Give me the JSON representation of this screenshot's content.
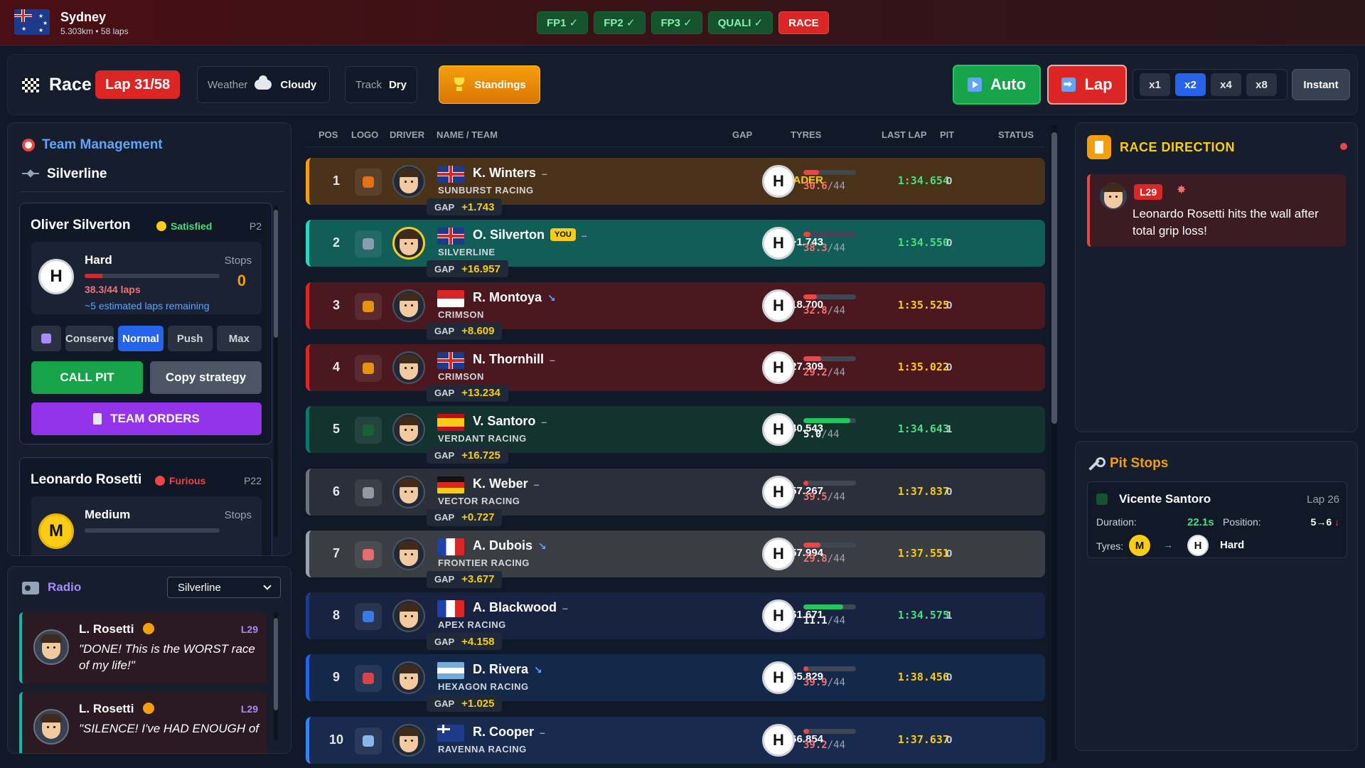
{
  "header": {
    "city": "Sydney",
    "track_info": "5.303km • 58 laps",
    "sessions": [
      {
        "label": "FP1 ✓",
        "done": true
      },
      {
        "label": "FP2 ✓",
        "done": true
      },
      {
        "label": "FP3 ✓",
        "done": true
      },
      {
        "label": "QUALI ✓",
        "done": true
      },
      {
        "label": "RACE",
        "done": false
      }
    ]
  },
  "controls": {
    "race_label": "Race",
    "lap_badge": "Lap 31/58",
    "weather_label": "Weather",
    "weather_value": "Cloudy",
    "track_label": "Track",
    "track_value": "Dry",
    "standings_label": "Standings",
    "auto_label": "Auto",
    "lap_label": "Lap",
    "speeds": [
      "x1",
      "x2",
      "x4",
      "x8"
    ],
    "speed_active": "x2",
    "instant_label": "Instant"
  },
  "team_management": {
    "title": "Team Management",
    "team": "Silverline",
    "drivers": [
      {
        "name": "Oliver Silverton",
        "mood": "Satisfied",
        "mood_color": "#4ade80",
        "position": "P2",
        "compound": "Hard",
        "compound_letter": "H",
        "tyre_laps": "38.3/44 laps",
        "tyre_wear_fraction": 0.13,
        "estimate": "~5 estimated laps remaining",
        "stops_label": "Stops",
        "stops": "0",
        "modes": [
          "Conserve",
          "Normal",
          "Push",
          "Max"
        ],
        "mode_active": "Normal",
        "call_pit": "CALL PIT",
        "copy_strategy": "Copy strategy",
        "team_orders": "TEAM ORDERS"
      },
      {
        "name": "Leonardo Rosetti",
        "mood": "Furious",
        "mood_color": "#ef4444",
        "position": "P22",
        "compound": "Medium",
        "compound_letter": "M",
        "stops_label": "Stops"
      }
    ]
  },
  "radio": {
    "title": "Radio",
    "selected_team": "Silverline",
    "messages": [
      {
        "from": "L. Rosetti",
        "lap": "L29",
        "text": "\"DONE! This is the WORST race of my life!\""
      },
      {
        "from": "L. Rosetti",
        "lap": "L29",
        "text": "\"SILENCE! I've HAD ENOUGH of"
      }
    ]
  },
  "table": {
    "headers": {
      "pos": "POS",
      "logo": "LOGO",
      "driver": "DRIVER",
      "name_team": "NAME / TEAM",
      "gap": "GAP",
      "tyres": "TYRES",
      "last_lap": "LAST LAP",
      "pit": "PIT",
      "status": "STATUS"
    },
    "gap_chip_label": "GAP",
    "you_label": "YOU",
    "rows": [
      {
        "pos": "1",
        "driver": "K. Winters",
        "team": "SUNBURST RACING",
        "flag": "uk",
        "trend": "–",
        "gap": "LEADER",
        "gap_ahead": "+1.743",
        "tyre": "H",
        "wear": "30.6",
        "wear_total": "/44",
        "wear_fraction": 0.3,
        "last_lap": "1:34.654",
        "pit": "0",
        "bg": "#4a3218",
        "border": "#f59e0b",
        "logo_color": "#f97316",
        "you": false
      },
      {
        "pos": "2",
        "driver": "O. Silverton",
        "team": "SILVERLINE",
        "flag": "uk",
        "trend": "–",
        "gap": "+1.743",
        "gap_ahead": "+16.957",
        "tyre": "H",
        "wear": "38.3",
        "wear_total": "/44",
        "wear_fraction": 0.13,
        "last_lap": "1:34.550",
        "pit": "0",
        "bg": "#115e59",
        "border": "#2dd4bf",
        "logo_color": "#94a3b8",
        "you": true
      },
      {
        "pos": "3",
        "driver": "R. Montoya",
        "team": "CRIMSON",
        "flag": "id",
        "trend": "↘",
        "gap": "+18.700",
        "gap_ahead": "+8.609",
        "tyre": "H",
        "wear": "32.8",
        "wear_total": "/44",
        "wear_fraction": 0.25,
        "last_lap": "1:35.525",
        "pit": "0",
        "bg": "#4c1820",
        "border": "#dc2626",
        "logo_color": "#f59e0b",
        "you": false
      },
      {
        "pos": "4",
        "driver": "N. Thornhill",
        "team": "CRIMSON",
        "flag": "uk",
        "trend": "–",
        "gap": "+27.309",
        "gap_ahead": "+13.234",
        "tyre": "H",
        "wear": "29.2",
        "wear_total": "/44",
        "wear_fraction": 0.34,
        "last_lap": "1:35.022",
        "pit": "0",
        "bg": "#4c1820",
        "border": "#dc2626",
        "logo_color": "#f59e0b",
        "you": false
      },
      {
        "pos": "5",
        "driver": "V. Santoro",
        "team": "VERDANT RACING",
        "flag": "es",
        "trend": "–",
        "gap": "+40.543",
        "gap_ahead": "+16.725",
        "tyre": "H",
        "wear": "5.0",
        "wear_total": "/44",
        "wear_fraction": 0.89,
        "last_lap": "1:34.643",
        "pit": "1",
        "bg": "#13332e",
        "border": "#0f766e",
        "logo_color": "#166534",
        "you": false
      },
      {
        "pos": "6",
        "driver": "K. Weber",
        "team": "VECTOR RACING",
        "flag": "de",
        "trend": "–",
        "gap": "+57.267",
        "gap_ahead": "+0.727",
        "tyre": "H",
        "wear": "39.5",
        "wear_total": "/44",
        "wear_fraction": 0.1,
        "last_lap": "1:37.837",
        "pit": "0",
        "bg": "#2a2f39",
        "border": "#6b7280",
        "logo_color": "#9ca3af",
        "you": false
      },
      {
        "pos": "7",
        "driver": "A. Dubois",
        "team": "FRONTIER RACING",
        "flag": "fr",
        "trend": "↘",
        "gap": "+57.994",
        "gap_ahead": "+3.677",
        "tyre": "H",
        "wear": "29.8",
        "wear_total": "/44",
        "wear_fraction": 0.32,
        "last_lap": "1:37.551",
        "pit": "0",
        "bg": "#3a3d44",
        "border": "#9ca3af",
        "logo_color": "#f87171",
        "you": false
      },
      {
        "pos": "8",
        "driver": "A. Blackwood",
        "team": "APEX RACING",
        "flag": "fr",
        "trend": "–",
        "gap": "+61.671",
        "gap_ahead": "+4.158",
        "tyre": "H",
        "wear": "11.1",
        "wear_total": "/44",
        "wear_fraction": 0.75,
        "last_lap": "1:34.575",
        "pit": "1",
        "bg": "#172340",
        "border": "#1e3a8a",
        "logo_color": "#3b82f6",
        "you": false
      },
      {
        "pos": "9",
        "driver": "D. Rivera",
        "team": "HEXAGON RACING",
        "flag": "ar",
        "trend": "↘",
        "gap": "+65.829",
        "gap_ahead": "+1.025",
        "tyre": "H",
        "wear": "39.9",
        "wear_total": "/44",
        "wear_fraction": 0.09,
        "last_lap": "1:38.456",
        "pit": "0",
        "bg": "#14284a",
        "border": "#2563eb",
        "logo_color": "#ef4444",
        "you": false
      },
      {
        "pos": "10",
        "driver": "R. Cooper",
        "team": "RAVENNA RACING",
        "flag": "au",
        "trend": "–",
        "gap": "+66.854",
        "gap_ahead": "",
        "tyre": "H",
        "wear": "39.2",
        "wear_total": "/44",
        "wear_fraction": 0.11,
        "last_lap": "1:37.637",
        "pit": "0",
        "bg": "#182a4e",
        "border": "#3b82f6",
        "logo_color": "#93c5fd",
        "you": false
      }
    ]
  },
  "race_direction": {
    "title": "RACE DIRECTION",
    "messages": [
      {
        "lap": "L29",
        "text": "Leonardo Rosetti hits the wall after total grip loss!"
      }
    ]
  },
  "pit_stops": {
    "title": "Pit Stops",
    "entries": [
      {
        "driver": "Vicente Santoro",
        "lap": "Lap 26",
        "duration_label": "Duration:",
        "duration": "22.1s",
        "position_label": "Position:",
        "position_change": "5→6",
        "position_arrow": "↓",
        "tyres_label": "Tyres:",
        "from_tyre": "M",
        "to_tyre": "H",
        "to_tyre_name": "Hard"
      }
    ]
  },
  "colors": {
    "accent_blue": "#2563eb",
    "race_red": "#dc2626",
    "leader_gold": "#facc15",
    "callpit_green": "#16a34a",
    "orders_purple": "#9333ea"
  }
}
